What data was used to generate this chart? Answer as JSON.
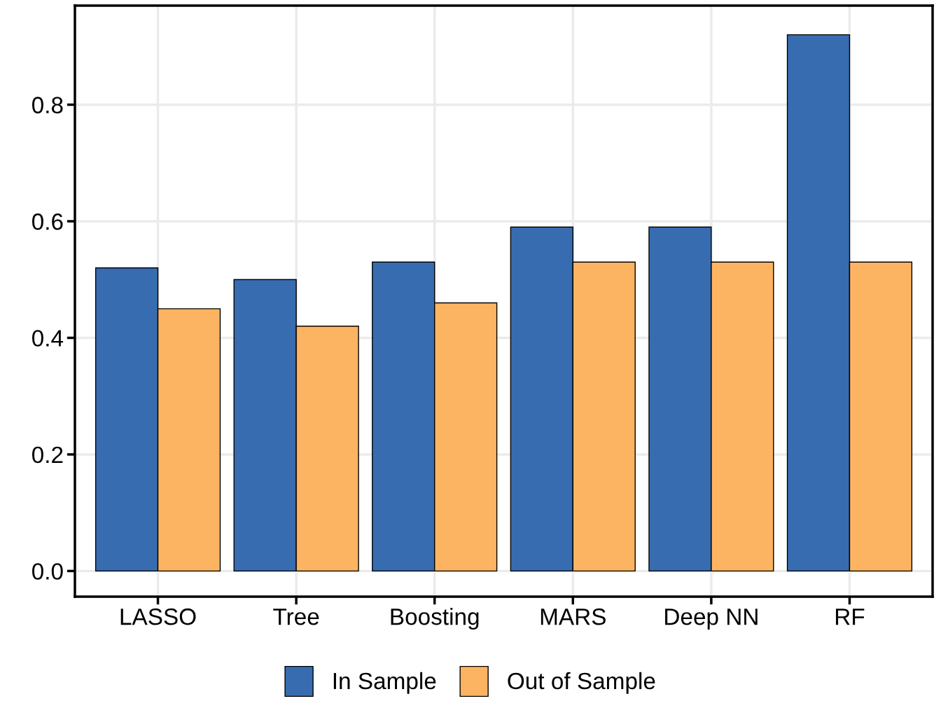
{
  "chart_data": {
    "type": "bar",
    "categories": [
      "LASSO",
      "Tree",
      "Boosting",
      "MARS",
      "Deep NN",
      "RF"
    ],
    "series": [
      {
        "name": "In Sample",
        "color": "#386cb0",
        "values": [
          0.52,
          0.5,
          0.53,
          0.59,
          0.59,
          0.92
        ]
      },
      {
        "name": "Out of Sample",
        "color": "#fdb462",
        "values": [
          0.45,
          0.42,
          0.46,
          0.53,
          0.53,
          0.53
        ]
      }
    ],
    "ylim": [
      -0.044,
      0.97
    ],
    "yticks": [
      {
        "value": 0,
        "label": "0.0"
      },
      0.2,
      0.4,
      0.6,
      0.8
    ],
    "grid": true,
    "legend": "bottom"
  }
}
